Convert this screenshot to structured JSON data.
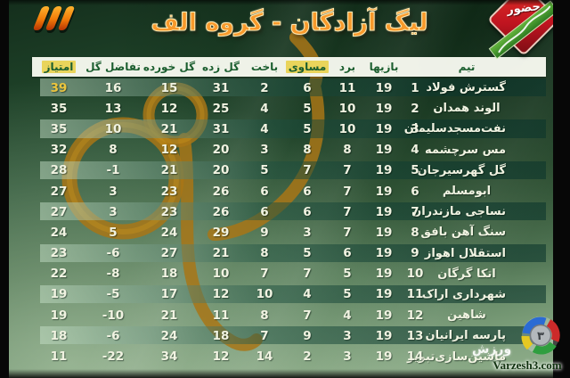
{
  "title": "لیگ آزادگان - گروه الف",
  "channel": {
    "name": "tv3-logo"
  },
  "badge": {
    "label": "حضور"
  },
  "watermark": {
    "text_fa": "ورزش",
    "center_digit": "۳",
    "url_text": "Varzesh3.com"
  },
  "table": {
    "headers": {
      "team": "تیم",
      "played": "بازیها",
      "won": "برد",
      "drawn": "مساوی",
      "lost": "باخت",
      "gf": "گل زده",
      "ga": "گل خورده",
      "gd": "تفاضل گل",
      "points": "امتیاز"
    },
    "highlighted_headers": [
      "drawn",
      "points"
    ],
    "rows": [
      {
        "rank": "1",
        "team": "گسترش فولاد",
        "played": "19",
        "won": "11",
        "drawn": "6",
        "lost": "2",
        "gf": "31",
        "ga": "15",
        "gd": "16",
        "points": "39"
      },
      {
        "rank": "2",
        "team": "الوند همدان",
        "played": "19",
        "won": "10",
        "drawn": "5",
        "lost": "4",
        "gf": "25",
        "ga": "12",
        "gd": "13",
        "points": "35"
      },
      {
        "rank": "3",
        "team": "نفت‌مسجدسلیمان",
        "played": "19",
        "won": "10",
        "drawn": "5",
        "lost": "4",
        "gf": "31",
        "ga": "21",
        "gd": "10",
        "points": "35"
      },
      {
        "rank": "4",
        "team": "مس سرچشمه",
        "played": "19",
        "won": "8",
        "drawn": "8",
        "lost": "3",
        "gf": "20",
        "ga": "12",
        "gd": "8",
        "points": "32"
      },
      {
        "rank": "5",
        "team": "گل گهرسیرجان",
        "played": "19",
        "won": "7",
        "drawn": "7",
        "lost": "5",
        "gf": "20",
        "ga": "21",
        "gd": "-1",
        "points": "28"
      },
      {
        "rank": "6",
        "team": "ابومسلم",
        "played": "19",
        "won": "7",
        "drawn": "6",
        "lost": "6",
        "gf": "26",
        "ga": "23",
        "gd": "3",
        "points": "27"
      },
      {
        "rank": "7",
        "team": "نساجی مازندران",
        "played": "19",
        "won": "7",
        "drawn": "6",
        "lost": "6",
        "gf": "26",
        "ga": "23",
        "gd": "3",
        "points": "27"
      },
      {
        "rank": "8",
        "team": "سنگ آهن بافق",
        "played": "19",
        "won": "7",
        "drawn": "3",
        "lost": "9",
        "gf": "29",
        "ga": "24",
        "gd": "5",
        "points": "24"
      },
      {
        "rank": "9",
        "team": "استقلال اهواز",
        "played": "19",
        "won": "6",
        "drawn": "5",
        "lost": "8",
        "gf": "21",
        "ga": "27",
        "gd": "-6",
        "points": "23"
      },
      {
        "rank": "10",
        "team": "اتکا گرگان",
        "played": "19",
        "won": "5",
        "drawn": "7",
        "lost": "7",
        "gf": "10",
        "ga": "18",
        "gd": "-8",
        "points": "22"
      },
      {
        "rank": "11",
        "team": "شهرداری اراک",
        "played": "19",
        "won": "5",
        "drawn": "4",
        "lost": "10",
        "gf": "12",
        "ga": "17",
        "gd": "-5",
        "points": "19"
      },
      {
        "rank": "12",
        "team": "شاهین",
        "played": "19",
        "won": "4",
        "drawn": "7",
        "lost": "8",
        "gf": "11",
        "ga": "21",
        "gd": "-10",
        "points": "19"
      },
      {
        "rank": "13",
        "team": "پارسه ایرانیان",
        "played": "19",
        "won": "3",
        "drawn": "9",
        "lost": "7",
        "gf": "18",
        "ga": "24",
        "gd": "-6",
        "points": "18"
      },
      {
        "rank": "14",
        "team": "ماشین‌سازی‌تبریز",
        "played": "19",
        "won": "3",
        "drawn": "2",
        "lost": "14",
        "gf": "12",
        "ga": "34",
        "gd": "-22",
        "points": "11"
      }
    ]
  },
  "colors": {
    "title_orange": "#f8992b",
    "header_bg": "#f6f8ee",
    "header_text": "#1b5e2f",
    "header_highlight": "#e9d45b",
    "leader_points": "#edc53d",
    "ornament_orange": "#a87516",
    "badge_red": "#c01420",
    "badge_ribbon_green": "#3f8f2c"
  }
}
